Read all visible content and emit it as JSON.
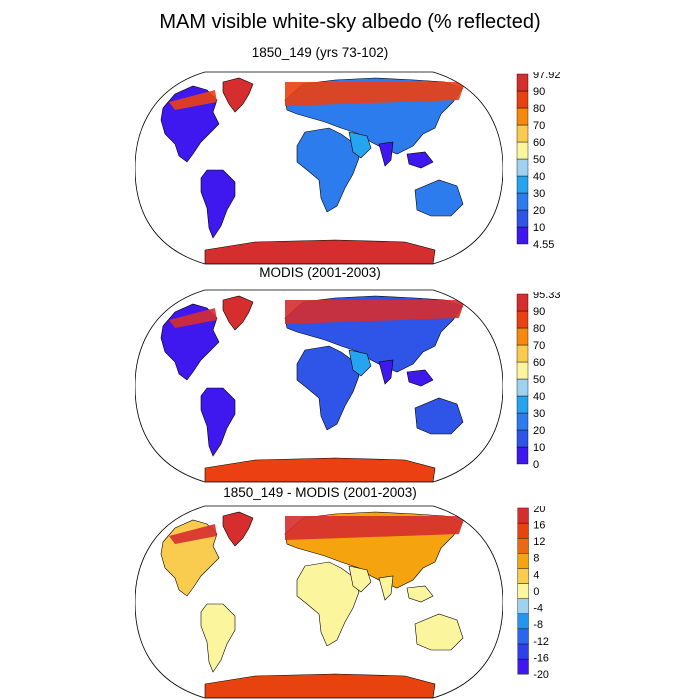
{
  "title": "MAM visible white-sky albedo (% reflected)",
  "panels": [
    {
      "title": "1850_149 (yrs 73-102)",
      "colorbar": {
        "colors": [
          "#3e18ef",
          "#2f54e8",
          "#2d7cee",
          "#25a4ef",
          "#9ed2f0",
          "#fbf59e",
          "#f9cc4f",
          "#f58a0e",
          "#eb4011",
          "#d62e2e"
        ],
        "labels": [
          "97.92",
          "90",
          "80",
          "70",
          "60",
          "50",
          "40",
          "30",
          "20",
          "10",
          "4.55"
        ]
      }
    },
    {
      "title": "MODIS (2001-2003)",
      "colorbar": {
        "colors": [
          "#3e18ef",
          "#2f54e8",
          "#2d7cee",
          "#25a4ef",
          "#9ed2f0",
          "#fbf59e",
          "#f9cc4f",
          "#f58a0e",
          "#eb4011",
          "#d62e2e"
        ],
        "labels": [
          "95.33",
          "90",
          "80",
          "70",
          "60",
          "50",
          "40",
          "30",
          "20",
          "10",
          "0"
        ]
      }
    },
    {
      "title": "1850_149 - MODIS (2001-2003)",
      "colorbar": {
        "colors": [
          "#3e18ef",
          "#2f40e8",
          "#2d66ee",
          "#2596ef",
          "#9ed2f0",
          "#fbf59e",
          "#f9cc4f",
          "#f5a30e",
          "#eb6a11",
          "#e8420f",
          "#d62e2e"
        ],
        "labels": [
          "20",
          "16",
          "12",
          "8",
          "4",
          "0",
          "-4",
          "-8",
          "-12",
          "-16",
          "-20"
        ]
      }
    }
  ]
}
